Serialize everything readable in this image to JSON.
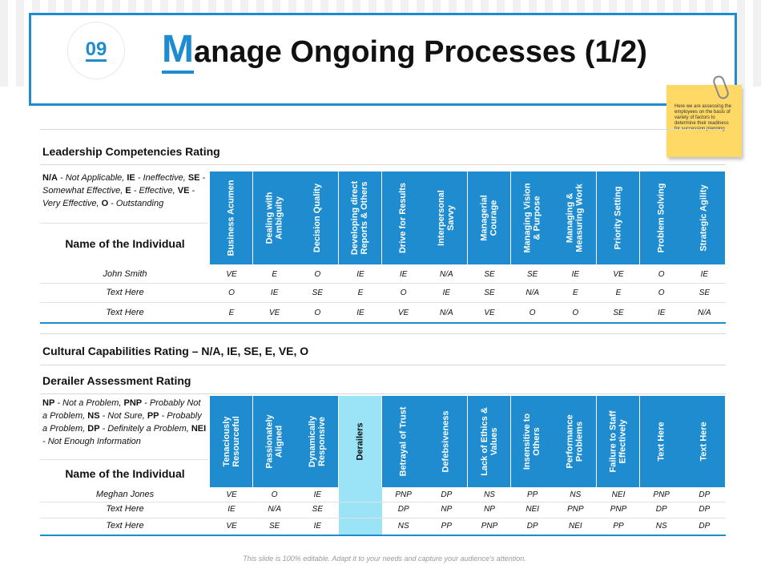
{
  "header": {
    "number": "09",
    "title_initial": "M",
    "title_rest": "anage Ongoing Processes (1/2)"
  },
  "note": {
    "text": "Here we are assessing the employees on the basis of variety of factors to determine their readiness for succession planning"
  },
  "leadership": {
    "title": "Leadership Competencies Rating",
    "legend": [
      {
        "code": "N/A",
        "desc": " - Not Applicable, "
      },
      {
        "code": "IE",
        "desc": " - Ineffective, "
      },
      {
        "code": "SE",
        "desc": " - Somewhat Effective, "
      },
      {
        "code": "E",
        "desc": " - Effective, "
      },
      {
        "code": "VE",
        "desc": " - Very Effective, "
      },
      {
        "code": "O",
        "desc": " - Outstanding"
      }
    ],
    "name_header": "Name of the Individual",
    "columns": [
      "Business Acumen",
      "Dealing with\nAmbiguity",
      "Decision Quality",
      "Developing direct\nReports & Others",
      "Drive for Results",
      "Interpersonal\nSavvy",
      "Managerial\nCourage",
      "Managing Vision\n& Purpose",
      "Managing &\nMeasuring Work",
      "Priority Setting",
      "Problem Solving",
      "Strategic Agility"
    ],
    "rows": [
      {
        "name": "John Smith",
        "values": [
          "VE",
          "E",
          "O",
          "IE",
          "IE",
          "N/A",
          "SE",
          "SE",
          "IE",
          "VE",
          "O",
          "IE"
        ]
      },
      {
        "name": "Text Here",
        "values": [
          "O",
          "IE",
          "SE",
          "E",
          "O",
          "IE",
          "SE",
          "N/A",
          "E",
          "E",
          "O",
          "SE"
        ]
      },
      {
        "name": "Text Here",
        "values": [
          "E",
          "VE",
          "O",
          "IE",
          "VE",
          "N/A",
          "VE",
          "O",
          "O",
          "SE",
          "IE",
          "N/A"
        ]
      }
    ]
  },
  "cultural": {
    "title": "Cultural Capabilities Rating – N/A, IE, SE, E, VE, O"
  },
  "derailer": {
    "title": "Derailer Assessment Rating",
    "legend": [
      {
        "code": "NP",
        "desc": " - Not a Problem, "
      },
      {
        "code": "PNP",
        "desc": " - Probably Not a Problem, "
      },
      {
        "code": "NS",
        "desc": " - Not Sure, "
      },
      {
        "code": "PP",
        "desc": " - Probably a Problem, "
      },
      {
        "code": "DP",
        "desc": " - Definitely a Problem, "
      },
      {
        "code": "NEI",
        "desc": " - Not Enough Information"
      }
    ],
    "name_header": "Name of the Individual",
    "columns": [
      "Tenaciously\nResourceful",
      "Passionately\nAligned",
      "Dynamically\nResponsive",
      "Derailers",
      "Betrayal of Trust",
      "Defebsiveness",
      "Lack of Ethics &\nValues",
      "Insensitive to\nOthers",
      "Performance\nProblems",
      "Failure to Staff\nEffectively",
      "Text Here",
      "Text Here"
    ],
    "rows": [
      {
        "name": "Meghan Jones",
        "values": [
          "VE",
          "O",
          "IE",
          "",
          "PNP",
          "DP",
          "NS",
          "PP",
          "NS",
          "NEI",
          "PNP",
          "DP"
        ]
      },
      {
        "name": "Text Here",
        "values": [
          "IE",
          "N/A",
          "SE",
          "",
          "DP",
          "NP",
          "NP",
          "NEI",
          "PNP",
          "PNP",
          "DP",
          "DP"
        ]
      },
      {
        "name": "Text Here",
        "values": [
          "VE",
          "SE",
          "IE",
          "",
          "NS",
          "PP",
          "PNP",
          "DP",
          "NEI",
          "PP",
          "NS",
          "DP"
        ]
      }
    ]
  },
  "footer": {
    "text": "This slide is 100% editable.  Adapt it to your needs and capture your audience's attention."
  },
  "colors": {
    "accent": "#1e8ccf",
    "highlight": "#9be3f7",
    "note": "#ffd966"
  }
}
